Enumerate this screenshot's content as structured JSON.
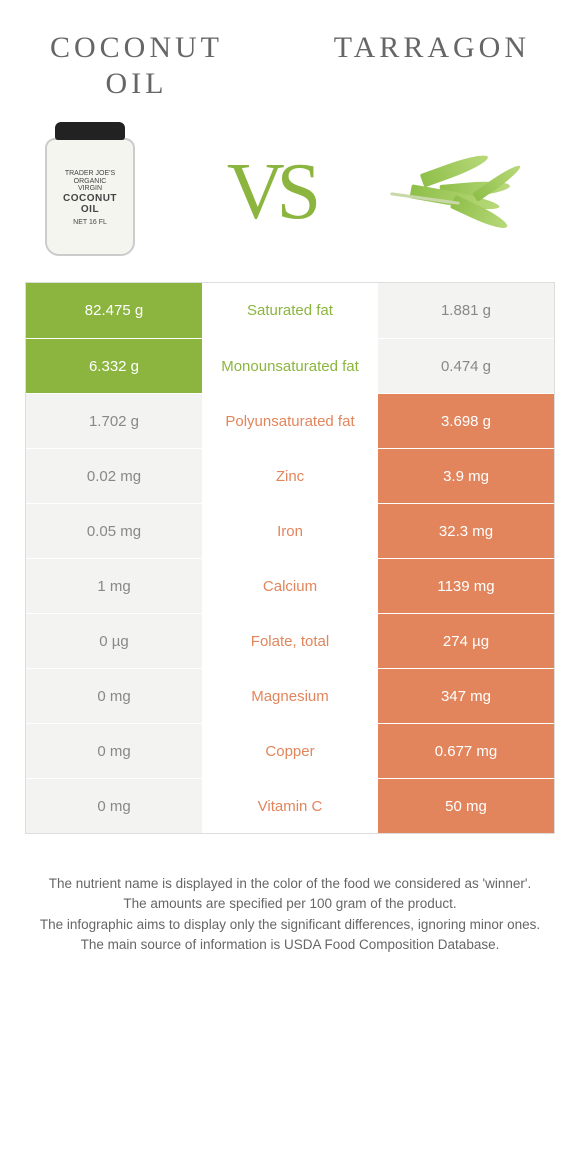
{
  "header": {
    "left_title_line1": "Coconut",
    "left_title_line2": "oil",
    "right_title": "Tarragon",
    "vs_text": "VS"
  },
  "colors": {
    "green": "#8bb53e",
    "orange": "#e2855c",
    "lose_bg": "#f3f3f2",
    "lose_text": "#888888",
    "border": "#dddddd",
    "body_text": "#666666"
  },
  "jar": {
    "line1": "TRADER JOE'S",
    "line2": "ORGANIC",
    "line3": "VIRGIN",
    "line4": "COCONUT",
    "line5": "OIL",
    "line6": "NET 16 FL"
  },
  "rows": [
    {
      "left": "82.475 g",
      "label": "Saturated fat",
      "right": "1.881 g",
      "winner": "left"
    },
    {
      "left": "6.332 g",
      "label": "Monounsaturated fat",
      "right": "0.474 g",
      "winner": "left"
    },
    {
      "left": "1.702 g",
      "label": "Polyunsaturated fat",
      "right": "3.698 g",
      "winner": "right"
    },
    {
      "left": "0.02 mg",
      "label": "Zinc",
      "right": "3.9 mg",
      "winner": "right"
    },
    {
      "left": "0.05 mg",
      "label": "Iron",
      "right": "32.3 mg",
      "winner": "right"
    },
    {
      "left": "1 mg",
      "label": "Calcium",
      "right": "1139 mg",
      "winner": "right"
    },
    {
      "left": "0 µg",
      "label": "Folate, total",
      "right": "274 µg",
      "winner": "right"
    },
    {
      "left": "0 mg",
      "label": "Magnesium",
      "right": "347 mg",
      "winner": "right"
    },
    {
      "left": "0 mg",
      "label": "Copper",
      "right": "0.677 mg",
      "winner": "right"
    },
    {
      "left": "0 mg",
      "label": "Vitamin C",
      "right": "50 mg",
      "winner": "right"
    }
  ],
  "notes": {
    "l1": "The nutrient name is displayed in the color of the food we considered as 'winner'.",
    "l2": "The amounts are specified per 100 gram of the product.",
    "l3": "The infographic aims to display only the significant differences, ignoring minor ones.",
    "l4": "The main source of information is USDA Food Composition Database."
  }
}
